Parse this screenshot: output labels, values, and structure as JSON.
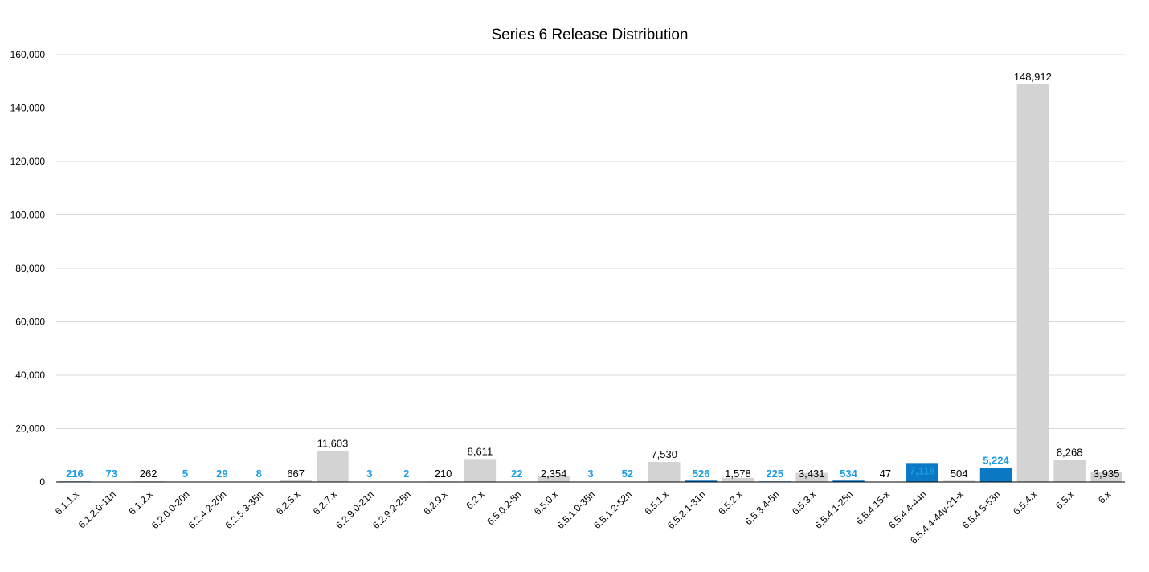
{
  "chart_data": {
    "type": "bar",
    "title": "Series 6 Release Distribution",
    "xlabel": "",
    "ylabel": "",
    "ylim": [
      0,
      160000
    ],
    "yticks": [
      0,
      20000,
      40000,
      60000,
      80000,
      100000,
      120000,
      140000,
      160000
    ],
    "grid": true,
    "legend": "none",
    "colors": {
      "gray": "#d3d3d3",
      "blue": "#0a78c3",
      "label_blue": "#1a9be6",
      "label_black": "#000000"
    },
    "categories": [
      "6.1.1.x",
      "6.1.2.0-11n",
      "6.1.2.x",
      "6.2.0.0-20n",
      "6.2.4.2-20n",
      "6.2.5.3-35n",
      "6.2.5.x",
      "6.2.7.x",
      "6.2.9.0-21n",
      "6.2.9.2-25n",
      "6.2.9.x",
      "6.2.x",
      "6.5.0.2-8n",
      "6.5.0.x",
      "6.5.1.0-35n",
      "6.5.1.2-52n",
      "6.5.1.x",
      "6.5.2.1-31n",
      "6.5.2.x",
      "6.5.3.4-5n",
      "6.5.3.x",
      "6.5.4.1-25n",
      "6.5.4.15-x",
      "6.5.4.4-44n",
      "6.5.4.4-44v-21-x",
      "6.5.4.5-53n",
      "6.5.4.x",
      "6.5.x",
      "6.x"
    ],
    "values": [
      216,
      73,
      262,
      5,
      29,
      8,
      667,
      11603,
      3,
      2,
      210,
      8611,
      22,
      2354,
      3,
      52,
      7530,
      526,
      1578,
      225,
      3431,
      534,
      47,
      7118,
      504,
      5224,
      148912,
      8268,
      3935
    ],
    "data_labels": [
      "216",
      "73",
      "262",
      "5",
      "29",
      "8",
      "667",
      "11,603",
      "3",
      "2",
      "210",
      "8,611",
      "22",
      "2,354",
      "3",
      "52",
      "7,530",
      "526",
      "1,578",
      "225",
      "3,431",
      "534",
      "47",
      "7,118",
      "504",
      "5,224",
      "148,912",
      "8,268",
      "3,935"
    ],
    "bar_colors": [
      "blue",
      "blue",
      "gray",
      "blue",
      "blue",
      "blue",
      "gray",
      "gray",
      "blue",
      "blue",
      "gray",
      "gray",
      "blue",
      "gray",
      "blue",
      "blue",
      "gray",
      "blue",
      "gray",
      "blue",
      "gray",
      "blue",
      "gray",
      "blue",
      "gray",
      "blue",
      "gray",
      "gray",
      "gray"
    ]
  }
}
